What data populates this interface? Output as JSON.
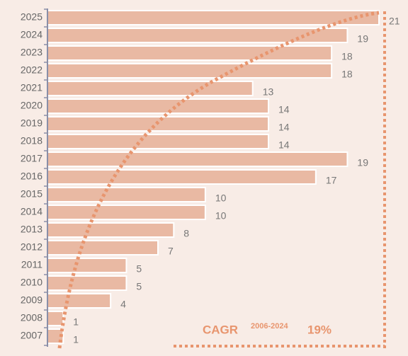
{
  "chart_data": {
    "type": "hbar",
    "categories": [
      "2025",
      "2024",
      "2023",
      "2022",
      "2021",
      "2020",
      "2019",
      "2018",
      "2017",
      "2016",
      "2015",
      "2014",
      "2013",
      "2012",
      "2011",
      "2010",
      "2009",
      "2008",
      "2007"
    ],
    "values": [
      21,
      19,
      18,
      18,
      13,
      14,
      14,
      14,
      19,
      17,
      10,
      10,
      8,
      7,
      5,
      5,
      4,
      1,
      1
    ],
    "color": "#e9b9a3",
    "annotation": {
      "label": "CAGR",
      "period": "2006-2024",
      "value": "19%"
    }
  }
}
